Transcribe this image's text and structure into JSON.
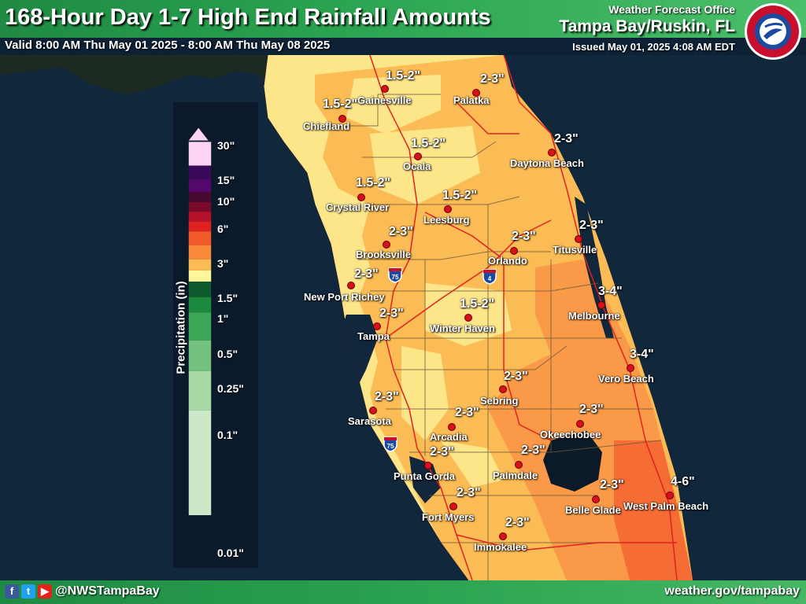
{
  "header": {
    "title": "168-Hour Day 1-7 High End Rainfall Amounts",
    "valid": "Valid 8:00 AM Thu May 01 2025 - 8:00 AM Thu May 08 2025",
    "office_label": "Weather Forecast Office",
    "office_name": "Tampa Bay/Ruskin, FL",
    "issued": "Issued May 01, 2025 4:08 AM EDT",
    "logo_text": "NATIONAL WEATHER SERVICE"
  },
  "legend": {
    "title": "Precipitation (in)",
    "ticks": [
      "30\"",
      "15\"",
      "10\"",
      "6\"",
      "3\"",
      "1.5\"",
      "1\"",
      "0.5\"",
      "0.25\"",
      "0.1\"",
      "0.01\""
    ],
    "colors": [
      "#fdd5f3",
      "#3a0a5a",
      "#54086b",
      "#450a2e",
      "#7a0a2a",
      "#b5122a",
      "#e0221f",
      "#f35a2a",
      "#fb8a3c",
      "#fcbc55",
      "#fff59a",
      "#0f5a2c",
      "#1c8a3e",
      "#3aa656",
      "#74c27d",
      "#a8d9a7",
      "#cbe9c8"
    ]
  },
  "shields": [
    "75",
    "4",
    "75"
  ],
  "cities": [
    {
      "name": "Gainesville",
      "amount": "1.5-2\""
    },
    {
      "name": "Palatka",
      "amount": "2-3\""
    },
    {
      "name": "Chiefland",
      "amount": "1.5-2\""
    },
    {
      "name": "Ocala",
      "amount": "1.5-2\""
    },
    {
      "name": "Daytona Beach",
      "amount": "2-3\""
    },
    {
      "name": "Crystal River",
      "amount": "1.5-2\""
    },
    {
      "name": "Leesburg",
      "amount": "1.5-2\""
    },
    {
      "name": "Titusville",
      "amount": "2-3\""
    },
    {
      "name": "Brooksville",
      "amount": "2-3\""
    },
    {
      "name": "Orlando",
      "amount": "2-3\""
    },
    {
      "name": "New Port Richey",
      "amount": "2-3\""
    },
    {
      "name": "Melbourne",
      "amount": "3-4\""
    },
    {
      "name": "Tampa",
      "amount": "2-3\""
    },
    {
      "name": "Winter Haven",
      "amount": "1.5-2\""
    },
    {
      "name": "Vero Beach",
      "amount": "3-4\""
    },
    {
      "name": "Sebring",
      "amount": "2-3\""
    },
    {
      "name": "Sarasota",
      "amount": "2-3\""
    },
    {
      "name": "Okeechobee",
      "amount": "2-3\""
    },
    {
      "name": "Arcadia",
      "amount": "2-3\""
    },
    {
      "name": "Punta Gorda",
      "amount": "2-3\""
    },
    {
      "name": "Palmdale",
      "amount": "2-3\""
    },
    {
      "name": "West Palm Beach",
      "amount": "4-6\""
    },
    {
      "name": "Belle Glade",
      "amount": "2-3\""
    },
    {
      "name": "Fort Myers",
      "amount": "2-3\""
    },
    {
      "name": "Immokalee",
      "amount": "2-3\""
    }
  ],
  "footer": {
    "handle": "@NWSTampaBay",
    "website": "weather.gov/tampabay",
    "social_icons": [
      "facebook-icon",
      "twitter-icon",
      "youtube-icon"
    ]
  }
}
